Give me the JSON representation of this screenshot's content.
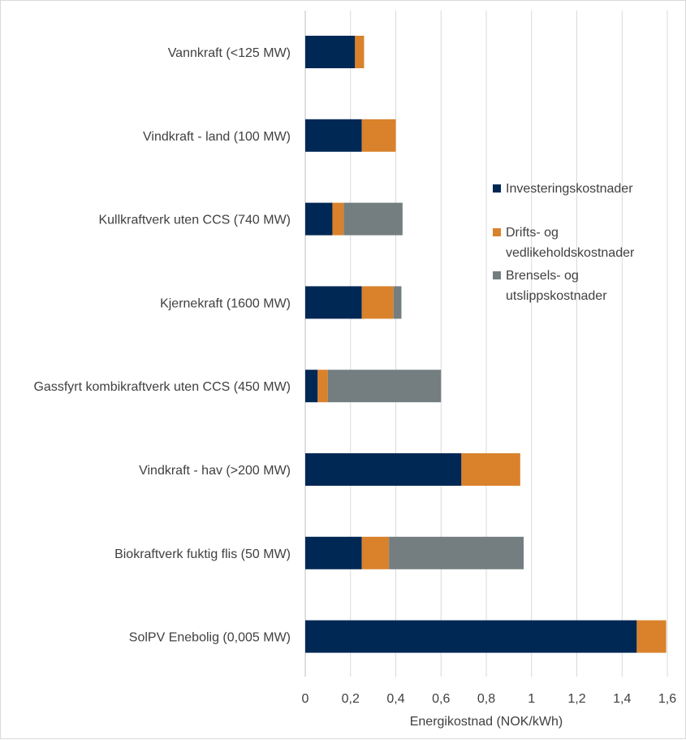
{
  "chart_data": {
    "type": "bar",
    "orientation": "horizontal",
    "stacked": true,
    "categories": [
      "Vannkraft (<125 MW)",
      "Vindkraft - land (100 MW)",
      "Kullkraftverk uten CCS (740 MW)",
      "Kjernekraft (1600 MW)",
      "Gassfyrt kombikraftverk uten CCS (450 MW)",
      "Vindkraft - hav (>200 MW)",
      "Biokraftverk fuktig flis (50 MW)",
      "SolPV Enebolig (0,005 MW)"
    ],
    "series": [
      {
        "name": "Investeringskostnader",
        "color": "#002855",
        "values": [
          0.22,
          0.25,
          0.12,
          0.25,
          0.055,
          0.69,
          0.25,
          1.465
        ]
      },
      {
        "name": "Drifts- og vedlikeholdskostnader",
        "color": "#d9822b",
        "values": [
          0.04,
          0.15,
          0.05,
          0.14,
          0.045,
          0.26,
          0.12,
          0.13
        ]
      },
      {
        "name": "Brensels- og utslippskostnader",
        "color": "#747e80",
        "values": [
          0.0,
          0.0,
          0.26,
          0.035,
          0.5,
          0.0,
          0.595,
          0.0
        ]
      }
    ],
    "xlabel": "Energikostnad (NOK/kWh)",
    "xlim": [
      0,
      1.6
    ],
    "xticks": [
      0,
      0.2,
      0.4,
      0.6,
      0.8,
      1.0,
      1.2,
      1.4,
      1.6
    ],
    "xtick_labels": [
      "0",
      "0,2",
      "0,4",
      "0,6",
      "0,8",
      "1",
      "1,2",
      "1,4",
      "1,6"
    ],
    "grid": "vertical",
    "legend": {
      "position": "right",
      "entries": [
        [
          "Investeringskostnader"
        ],
        [
          "Drifts- og",
          "vedlikeholdskostnader"
        ],
        [
          "Brensels- og",
          "utslippskostnader"
        ]
      ]
    }
  }
}
